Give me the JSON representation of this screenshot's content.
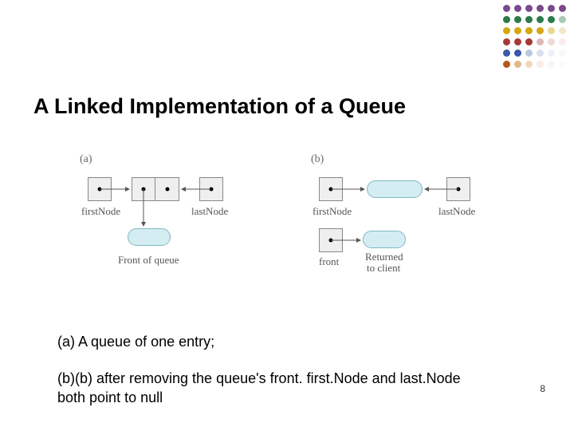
{
  "decoration": {
    "rows": [
      [
        "#7a4a8a",
        "#7a4a8a",
        "#7a4a8a",
        "#7a4a8a",
        "#7a4a8a",
        "#7a4a8a"
      ],
      [
        "#2a7a4a",
        "#2a7a4a",
        "#2a7a4a",
        "#2a7a4a",
        "#2a7a4a",
        "#a8c8b0"
      ],
      [
        "#d4a814",
        "#d4a814",
        "#d4a814",
        "#d4a814",
        "#e8d890",
        "#f0e8c8"
      ],
      [
        "#a83838",
        "#a83838",
        "#a83838",
        "#e0b8b8",
        "#f0d8d8",
        "#f8ecec"
      ],
      [
        "#3858a8",
        "#3858a8",
        "#b8c8e0",
        "#d8e0f0",
        "#ecf0f8",
        "#f6f8fc"
      ],
      [
        "#b85818",
        "#e0b890",
        "#f0d8c0",
        "#f8ece0",
        "#fcf6f0",
        "#fefaf6"
      ]
    ],
    "dot_size": 9,
    "gap": 5
  },
  "title": "A Linked Implementation of a Queue",
  "title_fontsize": 27,
  "diagram": {
    "panel_a": {
      "label": "(a)",
      "firstNode_label": "firstNode",
      "lastNode_label": "lastNode",
      "front_label": "Front of queue"
    },
    "panel_b": {
      "label": "(b)",
      "firstNode_label": "firstNode",
      "lastNode_label": "lastNode",
      "front_label": "front",
      "returned_label_l1": "Returned",
      "returned_label_l2": "to client"
    },
    "colors": {
      "pill_fill": "#d4edf2",
      "pill_border": "#7fb8c4",
      "box_fill": "#efefef",
      "box_border": "#888888",
      "label_color": "#555555"
    }
  },
  "captions": {
    "a": "(a) A queue of one entry;",
    "b": "(b)(b) after removing the queue's front. first.Node and last.Node both point to null"
  },
  "caption_fontsize": 18,
  "page_number": "8"
}
